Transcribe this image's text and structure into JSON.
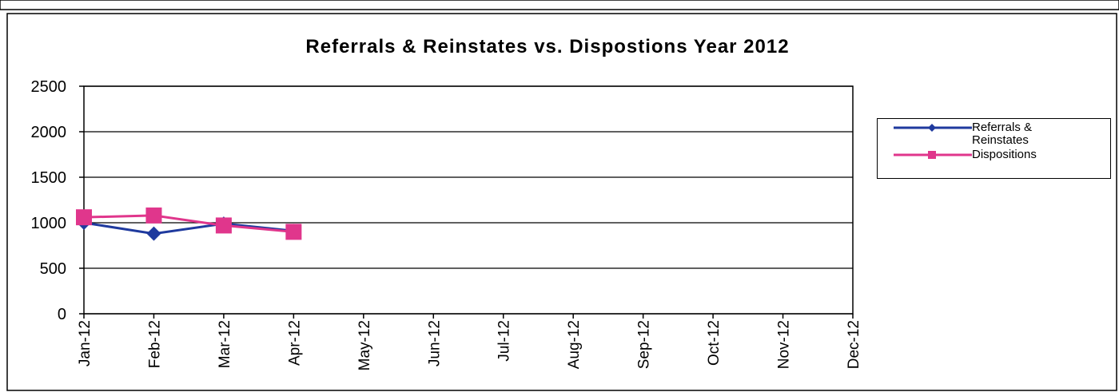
{
  "chart_data": {
    "type": "line",
    "title": "Referrals & Reinstates vs. Dispostions  Year 2012",
    "categories": [
      "Jan-12",
      "Feb-12",
      "Mar-12",
      "Apr-12",
      "May-12",
      "Jun-12",
      "Jul-12",
      "Aug-12",
      "Sep-12",
      "Oct-12",
      "Nov-12",
      "Dec-12"
    ],
    "series": [
      {
        "name": "Referrals & Reinstates",
        "color": "#1f3a9e",
        "marker": "diamond",
        "values": [
          1000,
          880,
          990,
          910,
          null,
          null,
          null,
          null,
          null,
          null,
          null,
          null
        ]
      },
      {
        "name": "Dispositions",
        "color": "#e0368c",
        "marker": "square",
        "values": [
          1060,
          1080,
          970,
          900,
          null,
          null,
          null,
          null,
          null,
          null,
          null,
          null
        ]
      }
    ],
    "ylim": [
      0,
      2500
    ],
    "yticks": [
      0,
      500,
      1000,
      1500,
      2000,
      2500
    ],
    "grid": true,
    "legend": "right"
  }
}
